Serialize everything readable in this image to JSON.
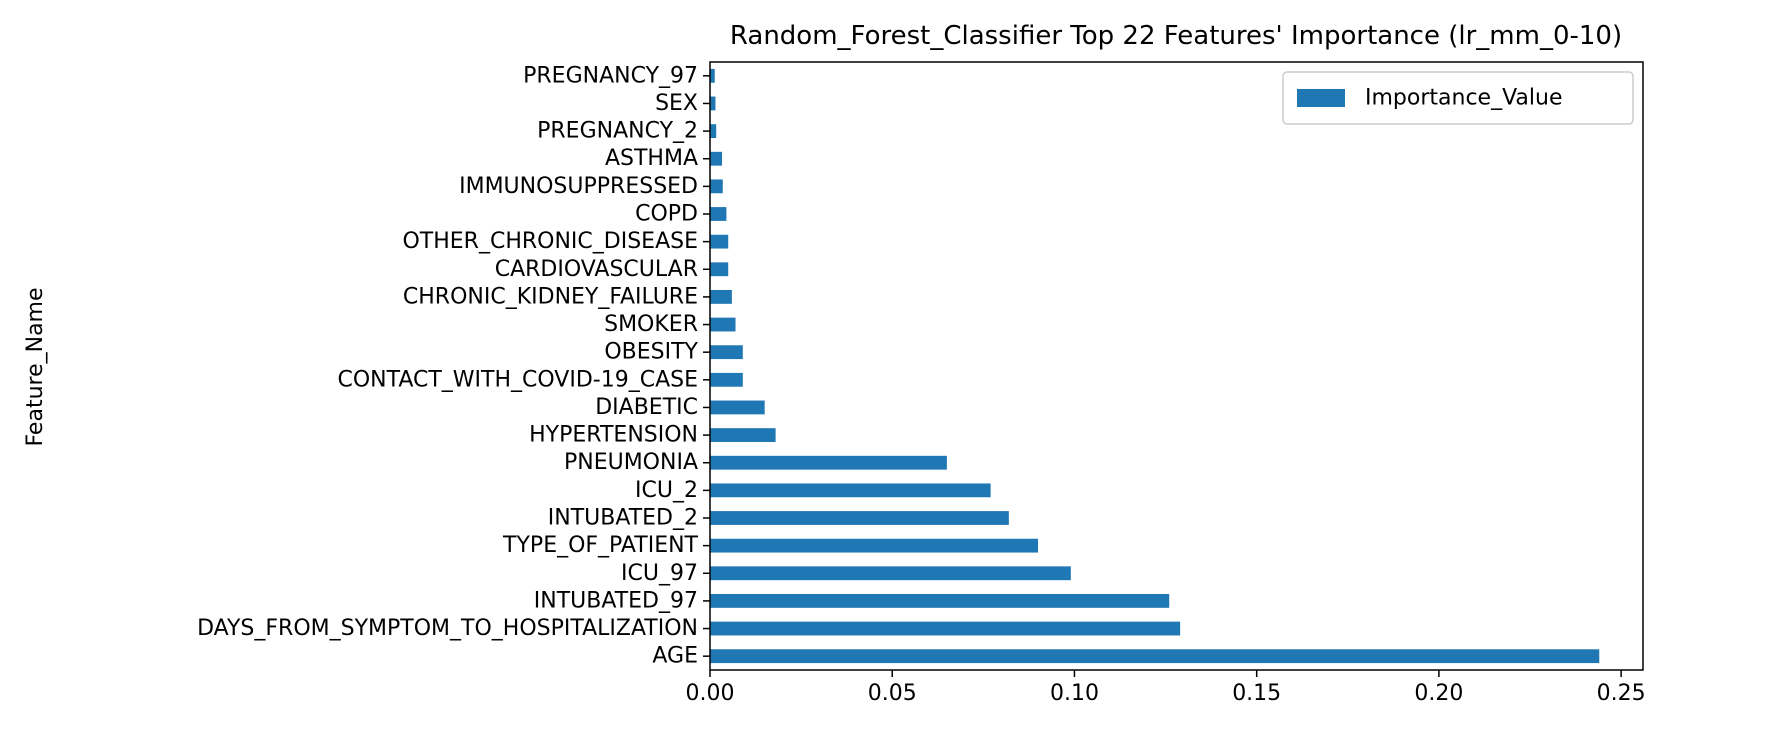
{
  "chart_data": {
    "type": "bar",
    "orientation": "horizontal",
    "title": "Random_Forest_Classifier Top 22 Features' Importance (lr_mm_0-10)",
    "xlabel": "",
    "ylabel": "Feature_Name",
    "xlim": [
      0,
      0.256
    ],
    "xticks": [
      0.0,
      0.05,
      0.1,
      0.15,
      0.2,
      0.25
    ],
    "xtick_labels": [
      "0.00",
      "0.05",
      "0.10",
      "0.15",
      "0.20",
      "0.25"
    ],
    "legend_position": "top-right",
    "grid": false,
    "color": "#1f77b4",
    "categories": [
      "AGE",
      "DAYS_FROM_SYMPTOM_TO_HOSPITALIZATION",
      "INTUBATED_97",
      "ICU_97",
      "TYPE_OF_PATIENT",
      "INTUBATED_2",
      "ICU_2",
      "PNEUMONIA",
      "HYPERTENSION",
      "DIABETIC",
      "CONTACT_WITH_COVID-19_CASE",
      "OBESITY",
      "SMOKER",
      "CHRONIC_KIDNEY_FAILURE",
      "CARDIOVASCULAR",
      "OTHER_CHRONIC_DISEASE",
      "COPD",
      "IMMUNOSUPPRESSED",
      "ASTHMA",
      "PREGNANCY_2",
      "SEX",
      "PREGNANCY_97"
    ],
    "series": [
      {
        "name": "Importance_Value",
        "values": [
          0.244,
          0.129,
          0.126,
          0.099,
          0.09,
          0.082,
          0.077,
          0.065,
          0.018,
          0.015,
          0.009,
          0.009,
          0.007,
          0.006,
          0.005,
          0.005,
          0.0045,
          0.0035,
          0.0033,
          0.0017,
          0.0015,
          0.0013
        ]
      }
    ]
  }
}
